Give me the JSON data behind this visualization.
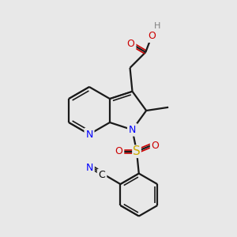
{
  "bg_color": "#e8e8e8",
  "bond_color": "#1a1a1a",
  "lw": 1.6,
  "lw_thin": 1.2,
  "atom_colors": {
    "N": "#0000ff",
    "O": "#cc0000",
    "S": "#ccaa00",
    "H": "#808080",
    "C": "#000000"
  },
  "font_size": 9,
  "font_size_small": 8
}
